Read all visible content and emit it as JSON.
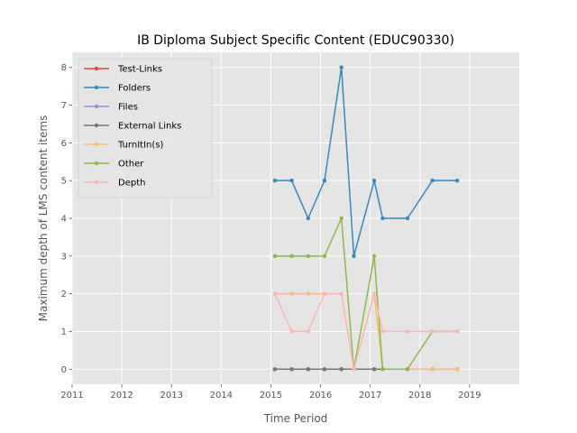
{
  "chart_data": {
    "type": "line",
    "title": "IB Diploma Subject Specific Content (EDUC90330)",
    "xlabel": "Time Period",
    "ylabel": "Maximum depth of LMS content items",
    "xlim": [
      2011,
      2020
    ],
    "ylim": [
      -0.4,
      8.4
    ],
    "x_ticks": [
      2011,
      2012,
      2013,
      2014,
      2015,
      2016,
      2017,
      2018,
      2019
    ],
    "y_ticks": [
      0,
      1,
      2,
      3,
      4,
      5,
      6,
      7,
      8
    ],
    "grid": true,
    "legend_position": "top-left",
    "x": [
      2015.08,
      2015.42,
      2015.75,
      2016.08,
      2016.42,
      2016.67,
      2017.08,
      2017.25,
      2017.75,
      2018.25,
      2018.75
    ],
    "series": [
      {
        "name": "Test-Links",
        "color": "#E24A33",
        "values": [
          0,
          0,
          0,
          0,
          0,
          0,
          0,
          0,
          0,
          0,
          0
        ]
      },
      {
        "name": "Folders",
        "color": "#348ABD",
        "values": [
          5,
          5,
          4,
          5,
          8,
          3,
          5,
          4,
          4,
          5,
          5
        ]
      },
      {
        "name": "Files",
        "color": "#988ED5",
        "values": [
          0,
          0,
          0,
          0,
          0,
          0,
          0,
          0,
          0,
          0,
          0
        ]
      },
      {
        "name": "External Links",
        "color": "#777777",
        "values": [
          0,
          0,
          0,
          0,
          0,
          0,
          0,
          0,
          0,
          0,
          0
        ]
      },
      {
        "name": "TurnItIn(s)",
        "color": "#FBC15E",
        "values": [
          2,
          2,
          2,
          2,
          2,
          0,
          2,
          0,
          0,
          0,
          0
        ]
      },
      {
        "name": "Other",
        "color": "#8EBA42",
        "values": [
          3,
          3,
          3,
          3,
          4,
          0,
          3,
          0,
          0,
          1,
          1
        ]
      },
      {
        "name": "Depth",
        "color": "#FFB5B8",
        "values": [
          2,
          1,
          1,
          2,
          2,
          0,
          2,
          1,
          1,
          1,
          1
        ]
      }
    ]
  }
}
